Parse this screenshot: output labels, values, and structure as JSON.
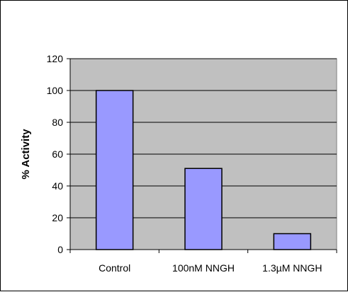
{
  "chart_data": {
    "type": "bar",
    "title": "",
    "xlabel": "",
    "ylabel": "% Activity",
    "categories": [
      "Control",
      "100nM NNGH",
      "1.3µM NNGH"
    ],
    "values": [
      100,
      51,
      10
    ],
    "ylim": [
      0,
      120
    ],
    "yticks": [
      0,
      20,
      40,
      60,
      80,
      100,
      120
    ],
    "grid": true,
    "legend": "none",
    "colors": {
      "bar_fill": "#9999ff",
      "bar_stroke": "#000000",
      "plot_background": "#c0c0c0",
      "gridline": "#000000"
    }
  }
}
